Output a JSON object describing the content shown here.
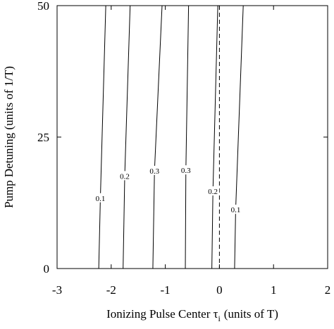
{
  "chart_data": {
    "type": "contour",
    "xlabel": {
      "main": "Ionizing Pulse Center τ",
      "subscript": "i",
      "suffix": "(units of T)"
    },
    "ylabel": "Pump Detuning (units of 1/T)",
    "xlim": [
      -3,
      2
    ],
    "xticks": [
      -3,
      -2,
      -1,
      0,
      1,
      2
    ],
    "ylim": [
      0,
      50
    ],
    "yticks": [
      0,
      25,
      50
    ],
    "vline": 0,
    "contours": [
      {
        "level": 0.1,
        "x": [
          -2.23,
          -2.2,
          -2.1
        ],
        "y": [
          0,
          13.4,
          50
        ]
      },
      {
        "level": 0.2,
        "x": [
          -1.78,
          -1.75,
          -1.65
        ],
        "y": [
          0,
          17.6,
          50
        ]
      },
      {
        "level": 0.3,
        "x": [
          -1.23,
          -1.2,
          -1.06
        ],
        "y": [
          0,
          18.6,
          50
        ]
      },
      {
        "level": 0.3,
        "x": [
          -0.63,
          -0.62,
          -0.57
        ],
        "y": [
          0,
          18.7,
          50
        ]
      },
      {
        "level": 0.2,
        "x": [
          -0.14,
          -0.12,
          -0.03
        ],
        "y": [
          0,
          14.7,
          50
        ]
      },
      {
        "level": 0.1,
        "x": [
          0.28,
          0.3,
          0.44
        ],
        "y": [
          0,
          11.2,
          50
        ]
      }
    ]
  }
}
